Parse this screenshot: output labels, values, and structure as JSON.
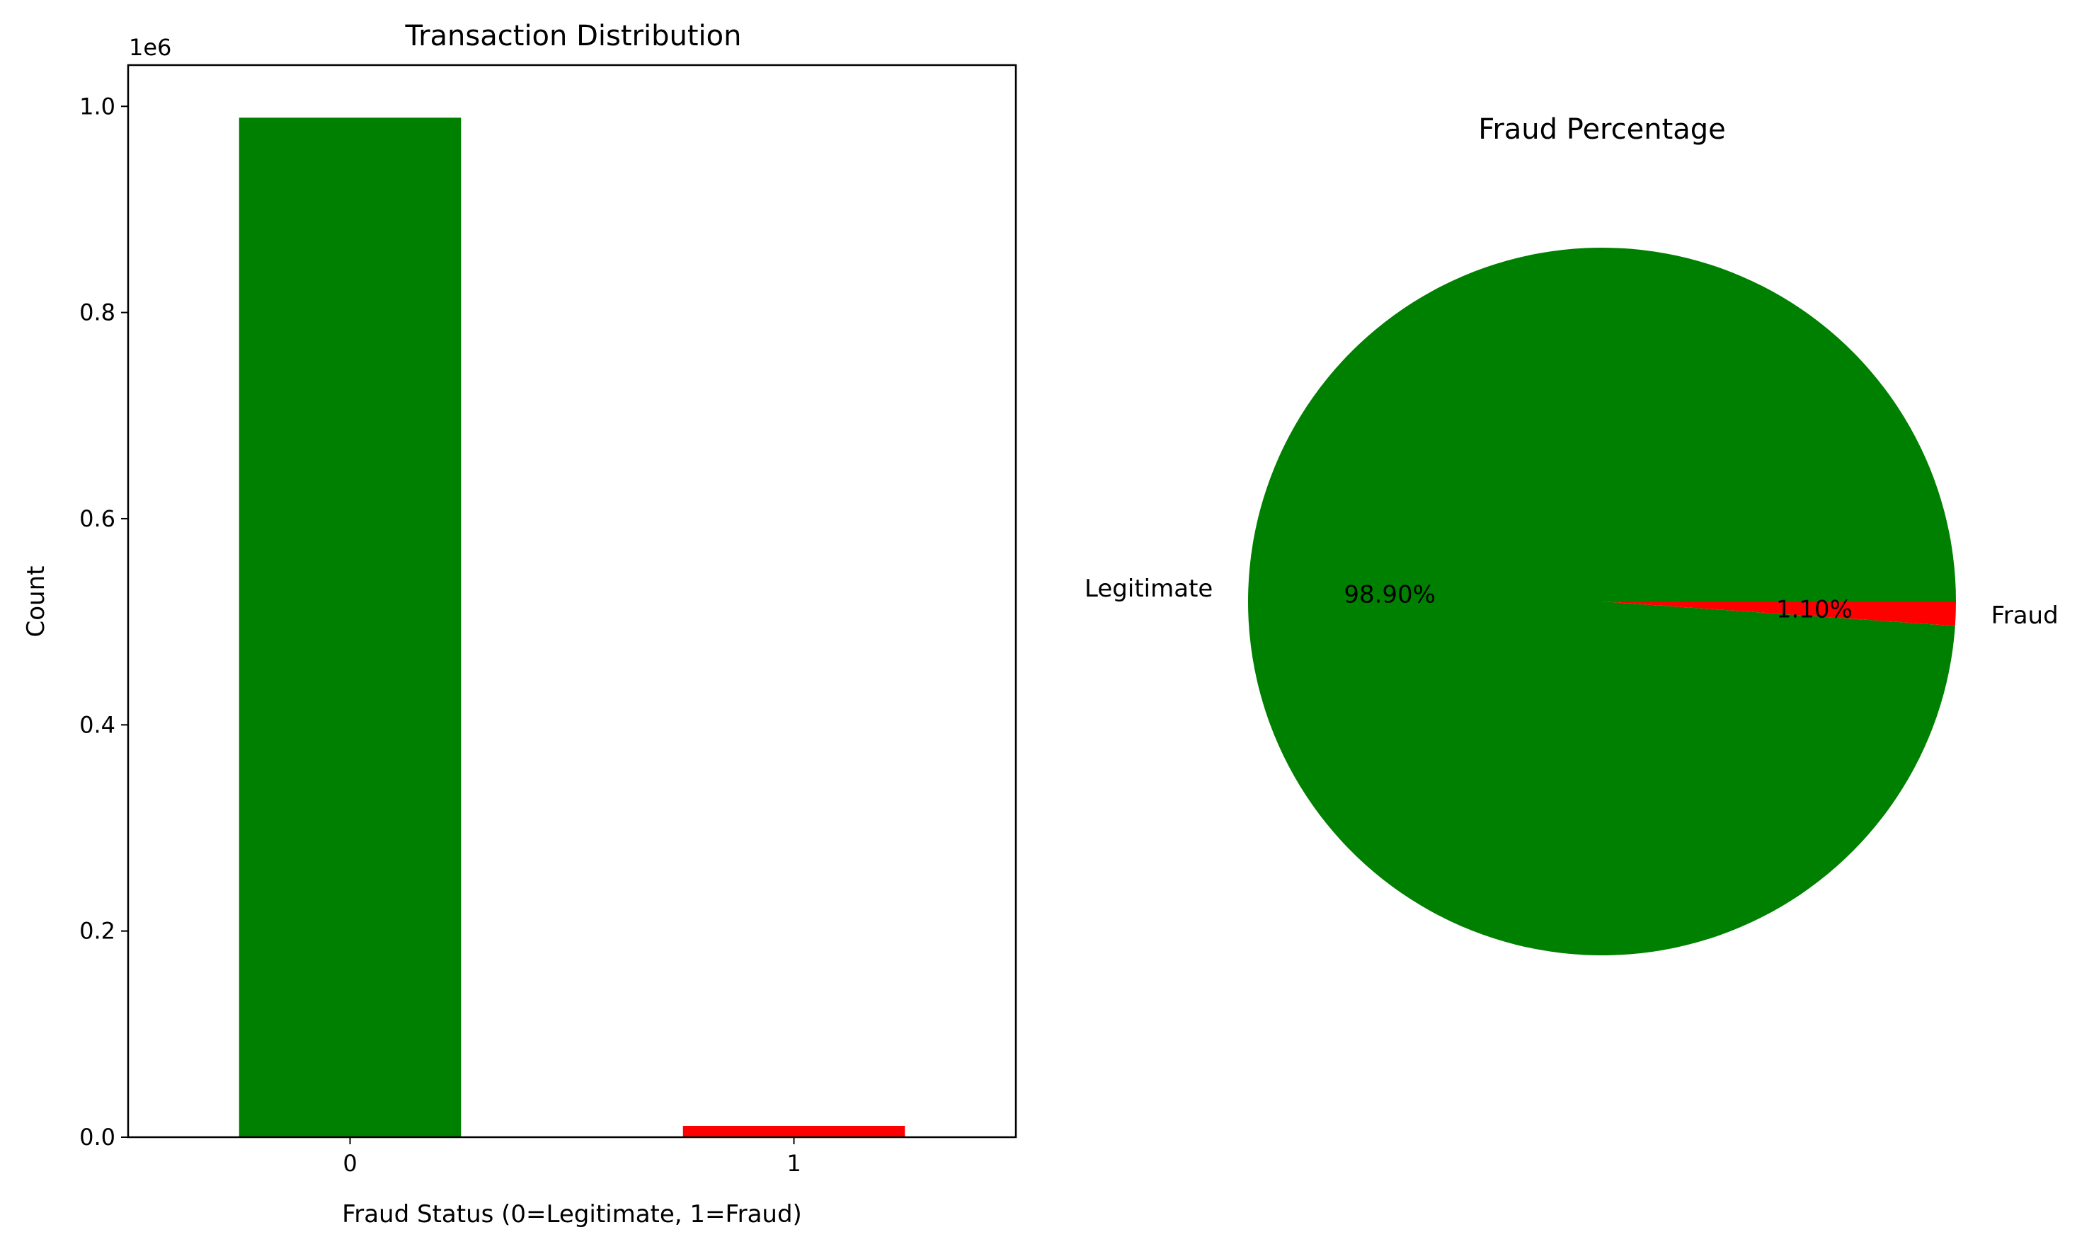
{
  "chart_data": [
    {
      "type": "bar",
      "title": "Transaction Distribution",
      "xlabel": "Fraud Status (0=Legitimate, 1=Fraud)",
      "ylabel": "Count",
      "offset_text": "1e6",
      "categories": [
        "0",
        "1"
      ],
      "values": [
        989000,
        11000
      ],
      "colors": [
        "#008000",
        "#ff0000"
      ],
      "ylim": [
        0,
        1040000
      ],
      "yticks": [
        0,
        200000,
        400000,
        600000,
        800000,
        1000000
      ],
      "ytick_labels": [
        "0.0",
        "0.2",
        "0.4",
        "0.6",
        "0.8",
        "1.0"
      ],
      "grid": false
    },
    {
      "type": "pie",
      "title": "Fraud Percentage",
      "labels": [
        "Legitimate",
        "Fraud"
      ],
      "values": [
        98.9,
        1.1
      ],
      "pct_labels": [
        "98.90%",
        "1.10%"
      ],
      "colors": [
        "#008000",
        "#ff0000"
      ]
    }
  ]
}
